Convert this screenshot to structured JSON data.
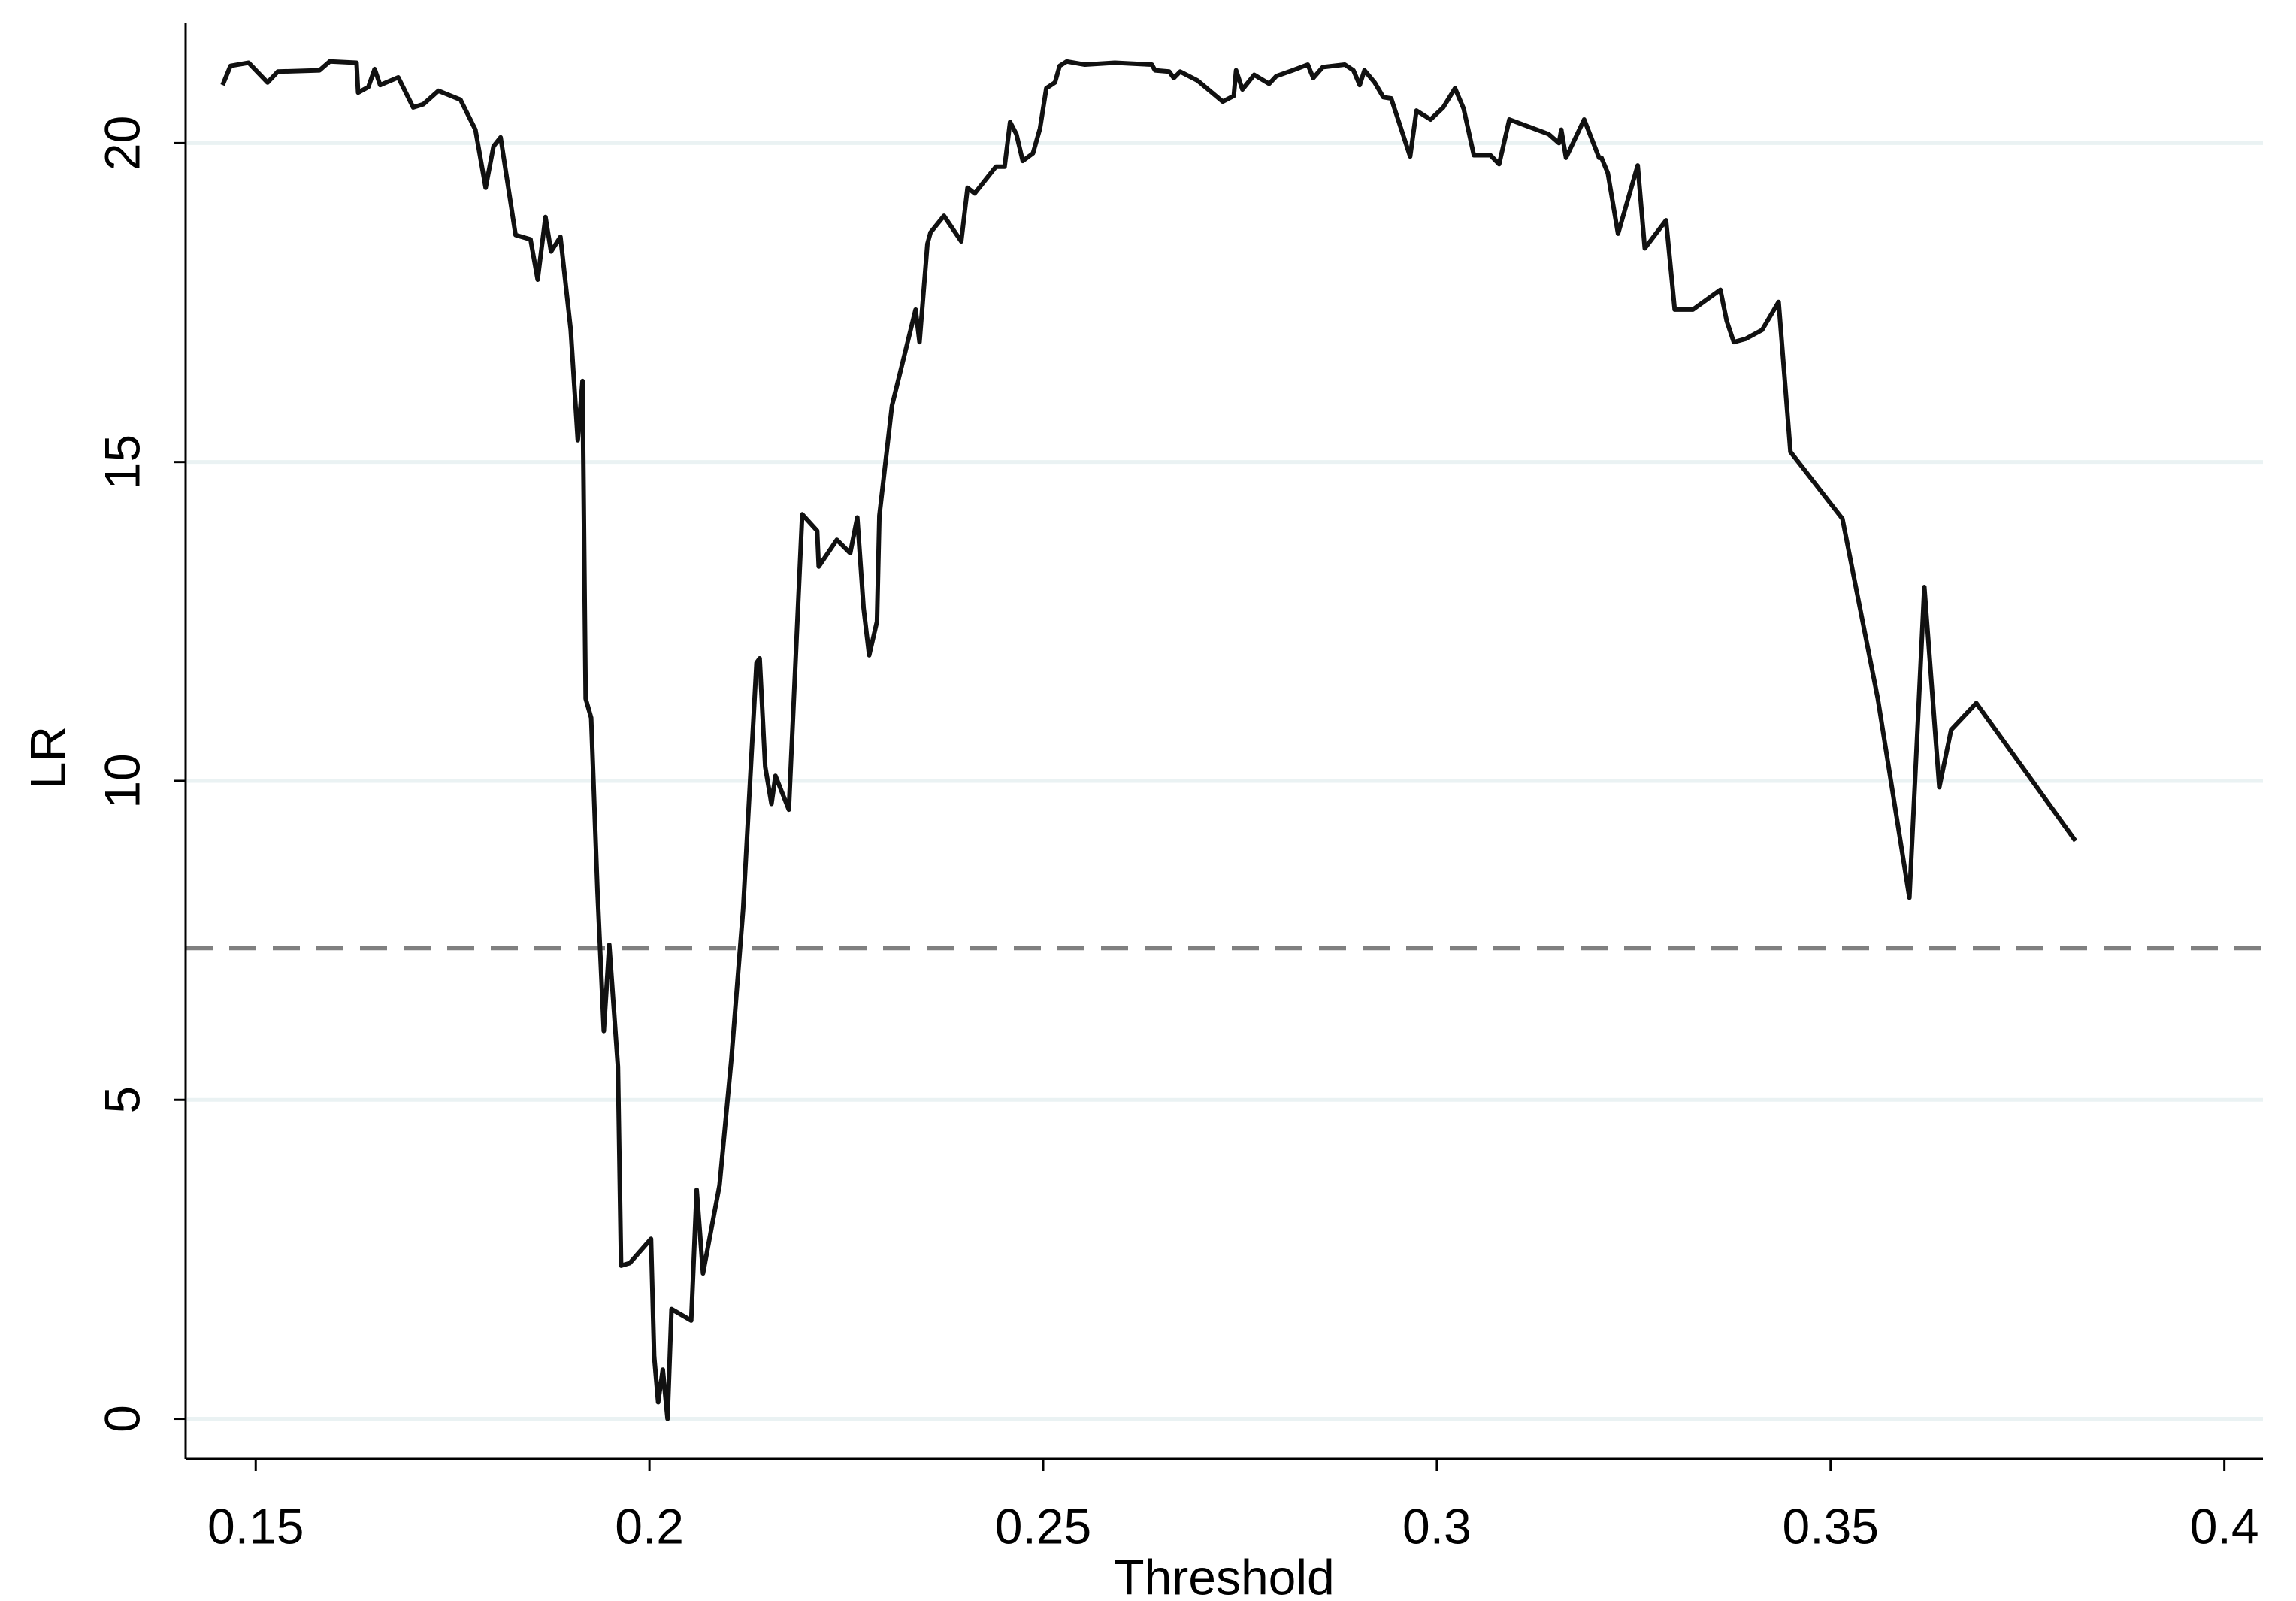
{
  "chart_data": {
    "type": "line",
    "xlabel": "Threshold",
    "ylabel": "LR",
    "x": [
      0.1458,
      0.1468,
      0.1491,
      0.1515,
      0.1528,
      0.1581,
      0.1594,
      0.1628,
      0.163,
      0.1643,
      0.1651,
      0.1658,
      0.1681,
      0.17,
      0.1713,
      0.1732,
      0.176,
      0.1779,
      0.1792,
      0.1802,
      0.1811,
      0.183,
      0.1849,
      0.1858,
      0.1868,
      0.1875,
      0.1887,
      0.19,
      0.1909,
      0.1915,
      0.1919,
      0.1926,
      0.1934,
      0.1942,
      0.1949,
      0.196,
      0.1964,
      0.1975,
      0.2002,
      0.2006,
      0.2011,
      0.2017,
      0.2023,
      0.2028,
      0.2053,
      0.206,
      0.2068,
      0.2089,
      0.2104,
      0.2119,
      0.2136,
      0.214,
      0.2147,
      0.2155,
      0.216,
      0.2177,
      0.2194,
      0.2213,
      0.2215,
      0.2238,
      0.2255,
      0.2264,
      0.2272,
      0.2279,
      0.2289,
      0.2292,
      0.2308,
      0.2338,
      0.2343,
      0.2353,
      0.2357,
      0.2374,
      0.2396,
      0.2404,
      0.2413,
      0.244,
      0.2451,
      0.2458,
      0.2466,
      0.2474,
      0.2487,
      0.2496,
      0.2504,
      0.2515,
      0.2521,
      0.253,
      0.2553,
      0.2591,
      0.2638,
      0.2642,
      0.266,
      0.2666,
      0.2674,
      0.2696,
      0.2728,
      0.2742,
      0.2745,
      0.2753,
      0.2768,
      0.2787,
      0.2796,
      0.2817,
      0.2836,
      0.2843,
      0.2855,
      0.2883,
      0.2894,
      0.2902,
      0.2908,
      0.2921,
      0.2932,
      0.2942,
      0.2966,
      0.2974,
      0.2992,
      0.3008,
      0.3023,
      0.3034,
      0.3047,
      0.3068,
      0.3079,
      0.3092,
      0.3142,
      0.3155,
      0.3158,
      0.3164,
      0.3187,
      0.3206,
      0.3209,
      0.3217,
      0.323,
      0.3255,
      0.3264,
      0.3291,
      0.3302,
      0.3325,
      0.336,
      0.3368,
      0.3377,
      0.3392,
      0.3413,
      0.3434,
      0.3449,
      0.3515,
      0.356,
      0.36,
      0.3619,
      0.3638,
      0.3653,
      0.3685,
      0.3811
    ],
    "series": [
      {
        "color": "#111111",
        "values": [
          20.91,
          21.21,
          21.26,
          20.95,
          21.12,
          21.14,
          21.28,
          21.26,
          20.79,
          20.88,
          21.16,
          20.91,
          21.03,
          20.56,
          20.61,
          20.82,
          20.68,
          20.21,
          19.3,
          19.95,
          20.09,
          18.56,
          18.49,
          17.86,
          18.84,
          18.3,
          18.53,
          17.07,
          15.34,
          16.27,
          11.29,
          10.99,
          8.27,
          6.08,
          7.43,
          5.52,
          2.4,
          2.44,
          2.82,
          0.98,
          0.26,
          0.77,
          0.0,
          1.72,
          1.54,
          3.59,
          2.28,
          3.66,
          5.63,
          7.99,
          11.85,
          11.92,
          10.22,
          9.64,
          10.08,
          9.55,
          14.18,
          13.92,
          13.36,
          13.78,
          13.57,
          14.13,
          12.71,
          11.97,
          12.5,
          14.16,
          15.88,
          17.39,
          16.88,
          18.42,
          18.6,
          18.86,
          18.46,
          19.3,
          19.21,
          19.63,
          19.63,
          20.33,
          20.14,
          19.72,
          19.84,
          20.23,
          20.86,
          20.95,
          21.21,
          21.28,
          21.23,
          21.26,
          21.23,
          21.14,
          21.12,
          21.02,
          21.12,
          20.98,
          20.65,
          20.74,
          21.14,
          20.84,
          21.07,
          20.93,
          21.05,
          21.14,
          21.23,
          21.02,
          21.19,
          21.23,
          21.14,
          20.91,
          21.14,
          20.95,
          20.72,
          20.7,
          19.79,
          20.51,
          20.37,
          20.56,
          20.86,
          20.54,
          19.81,
          19.81,
          19.67,
          20.37,
          20.14,
          20.0,
          20.21,
          19.77,
          20.37,
          19.77,
          19.77,
          19.53,
          18.58,
          19.65,
          18.35,
          18.79,
          17.39,
          17.39,
          17.7,
          17.21,
          16.88,
          16.93,
          17.07,
          17.51,
          15.16,
          14.11,
          11.29,
          8.17,
          13.04,
          9.9,
          10.8,
          11.22,
          9.06
        ]
      }
    ],
    "hline": {
      "value": 7.38,
      "color": "#808080"
    },
    "xlim": [
      0.1411,
      0.4049
    ],
    "xticks": [
      0.15,
      0.2,
      0.25,
      0.3,
      0.35,
      0.4
    ],
    "ylim": [
      -0.63,
      21.89
    ],
    "yticks": [
      0,
      5,
      10,
      15,
      20
    ],
    "grid": true,
    "grid_color": "#eaf2f3"
  }
}
